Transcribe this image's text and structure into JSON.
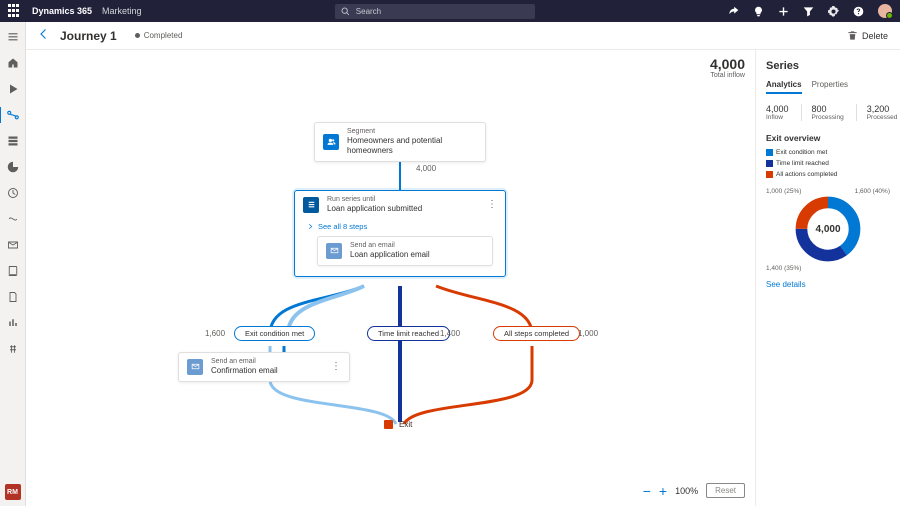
{
  "top": {
    "app": "Dynamics 365",
    "area": "Marketing",
    "search_placeholder": "Search"
  },
  "cmd": {
    "title": "Journey 1",
    "status": "Completed",
    "delete": "Delete"
  },
  "inflow": {
    "value": "4,000",
    "label": "Total inflow"
  },
  "zoom": {
    "percent": "100%",
    "reset": "Reset"
  },
  "nodes": {
    "segment": {
      "kind": "Segment",
      "name": "Homeowners and potential homeowners",
      "count": "4,000"
    },
    "series": {
      "kind": "Run series until",
      "name": "Loan application submitted",
      "see_all": "See all 8 steps",
      "inner_kind": "Send an email",
      "inner_name": "Loan application email"
    },
    "branch_exit_met": {
      "label": "Exit condition met",
      "count": "1,600",
      "color": "#0078d4"
    },
    "branch_time": {
      "label": "Time limit reached",
      "count": "1,400",
      "color": "#14329b"
    },
    "branch_all": {
      "label": "All steps completed",
      "count": "1,000",
      "color": "#d83b01"
    },
    "confirmation": {
      "kind": "Send an email",
      "name": "Confirmation email"
    },
    "exit": "Exit"
  },
  "side": {
    "title": "Series",
    "tabs": {
      "analytics": "Analytics",
      "properties": "Properties"
    },
    "metrics": {
      "inflow": {
        "n": "4,000",
        "l": "Inflow"
      },
      "processing": {
        "n": "800",
        "l": "Processing"
      },
      "processed": {
        "n": "3,200",
        "l": "Processed"
      }
    },
    "overview_title": "Exit overview",
    "legend": {
      "exit_met": {
        "label": "Exit condition met",
        "color": "#0078d4"
      },
      "time": {
        "label": "Time limit reached",
        "color": "#14329b"
      },
      "all": {
        "label": "All actions completed",
        "color": "#d83b01"
      }
    },
    "donut": {
      "center": "4,000",
      "slices": [
        {
          "value": 1600,
          "share": 0.4,
          "color": "#0078d4",
          "label": "1,600 (40%)"
        },
        {
          "value": 1400,
          "share": 0.35,
          "color": "#14329b",
          "label": "1,400 (35%)"
        },
        {
          "value": 1000,
          "share": 0.25,
          "color": "#d83b01",
          "label": "1,000 (25%)"
        }
      ]
    },
    "see_details": "See details"
  },
  "leftnav_badge": "RM"
}
